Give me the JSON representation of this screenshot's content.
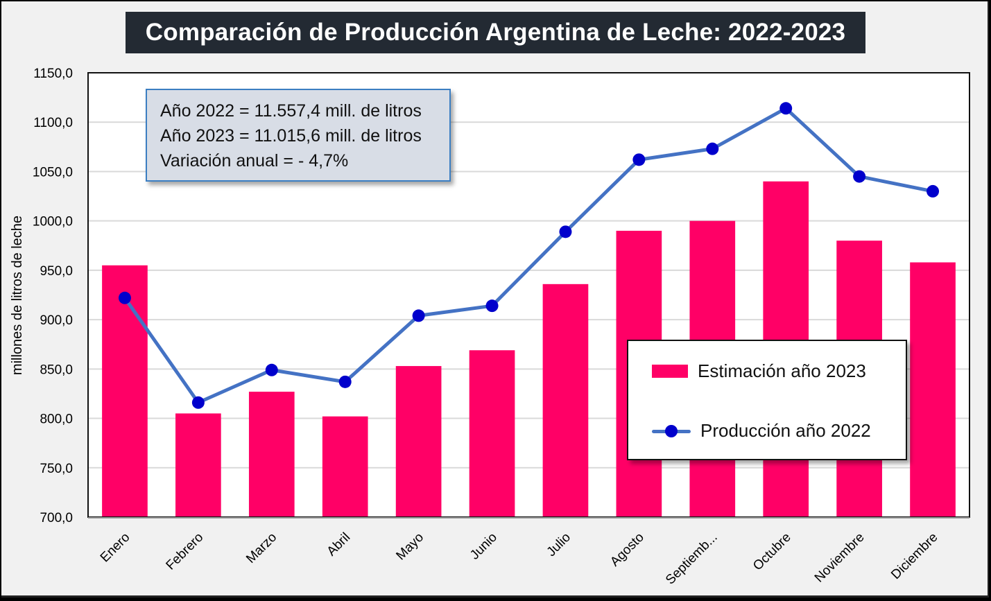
{
  "colors": {
    "bar": "#ff0066",
    "line": "#4472c4",
    "marker": "#0000cc",
    "title_bg": "#232a33",
    "plot_bg": "#ffffff",
    "grid": "#d9d9d9",
    "info_bg": "#d8dde6",
    "info_border": "#3b7ec2"
  },
  "info_box": {
    "lines": [
      "Año 2022 = 11.557,4 mill. de litros",
      "Año 2023 = 11.015,6 mill. de litros",
      "Variación anual = - 4,7%"
    ]
  },
  "legend": {
    "items": [
      {
        "label": "Estimación año 2023",
        "type": "bar"
      },
      {
        "label": "Producción año 2022",
        "type": "line"
      }
    ]
  },
  "chart_data": {
    "type": "bar",
    "title": "Comparación de Producción Argentina de Leche: 2022-2023",
    "xlabel": "",
    "ylabel": "millones de litros de leche",
    "ylim": [
      700,
      1150
    ],
    "yticks": [
      700,
      750,
      800,
      850,
      900,
      950,
      1000,
      1050,
      1100,
      1150
    ],
    "ytick_labels": [
      "700,0",
      "750,0",
      "800,0",
      "850,0",
      "900,0",
      "950,0",
      "1000,0",
      "1050,0",
      "1100,0",
      "1150,0"
    ],
    "grid": true,
    "legend_position": "bottom-right",
    "categories": [
      "Enero",
      "Febrero",
      "Marzo",
      "Abril",
      "Mayo",
      "Junio",
      "Julio",
      "Agosto",
      "Septiemb...",
      "Octubre",
      "Noviembre",
      "Diciembre"
    ],
    "series": [
      {
        "name": "Estimación año 2023",
        "type": "bar",
        "values": [
          955,
          805,
          827,
          802,
          853,
          869,
          936,
          990,
          1000,
          1040,
          980,
          958
        ]
      },
      {
        "name": "Producción año 2022",
        "type": "line",
        "values": [
          922,
          816,
          849,
          837,
          904,
          914,
          989,
          1062,
          1073,
          1114,
          1045,
          1030
        ]
      }
    ]
  }
}
